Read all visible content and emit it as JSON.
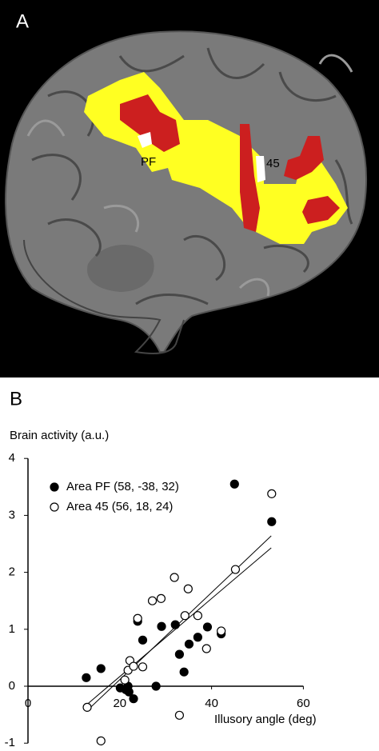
{
  "panel_a": {
    "label": "A",
    "annotations": [
      "PF",
      "45"
    ]
  },
  "chart_data": {
    "type": "scatter",
    "panel_label": "B",
    "y_label": "Brain activity (a.u.)",
    "x_label": "Illusory angle (deg)",
    "xlim": [
      0,
      60
    ],
    "ylim": [
      -1,
      4
    ],
    "xticks": [
      0,
      20,
      40,
      60
    ],
    "yticks": [
      4,
      3,
      2,
      1,
      0,
      -1
    ],
    "legend": "upper left",
    "series": [
      {
        "name": "Area PF (58, -38, 32)",
        "marker": "filled",
        "color": "#000000",
        "x": [
          12.7,
          15.9,
          20.1,
          21.3,
          21.8,
          22.0,
          23.0,
          23.9,
          25.0,
          27.9,
          29.1,
          32.1,
          33.0,
          34.0,
          35.1,
          37.0,
          39.1,
          42.1,
          45.0,
          53.1
        ],
        "values": [
          0.15,
          0.31,
          -0.03,
          -0.06,
          0,
          -0.1,
          -0.22,
          1.14,
          0.81,
          0,
          1.05,
          1.08,
          0.56,
          0.25,
          0.74,
          0.86,
          1.04,
          0.92,
          3.55,
          2.89
        ]
      },
      {
        "name": "Area 45 (56, 18, 24)",
        "marker": "open",
        "color": "#000000",
        "x": [
          12.9,
          15.9,
          21.1,
          21.8,
          22.2,
          23.0,
          23.9,
          25.0,
          27.1,
          29.0,
          31.9,
          33.0,
          34.2,
          34.9,
          37.0,
          38.9,
          42.1,
          45.2,
          53.1
        ],
        "values": [
          -0.37,
          -0.96,
          0.11,
          0.28,
          0.45,
          0.35,
          1.19,
          0.34,
          1.5,
          1.54,
          1.91,
          -0.51,
          1.24,
          1.71,
          1.24,
          0.66,
          0.97,
          2.05,
          3.38
        ]
      }
    ],
    "fit_lines": [
      {
        "x": [
          13,
          53
        ],
        "values": [
          -0.42,
          2.64
        ]
      },
      {
        "x": [
          13,
          53
        ],
        "values": [
          -0.31,
          2.43
        ]
      }
    ]
  }
}
